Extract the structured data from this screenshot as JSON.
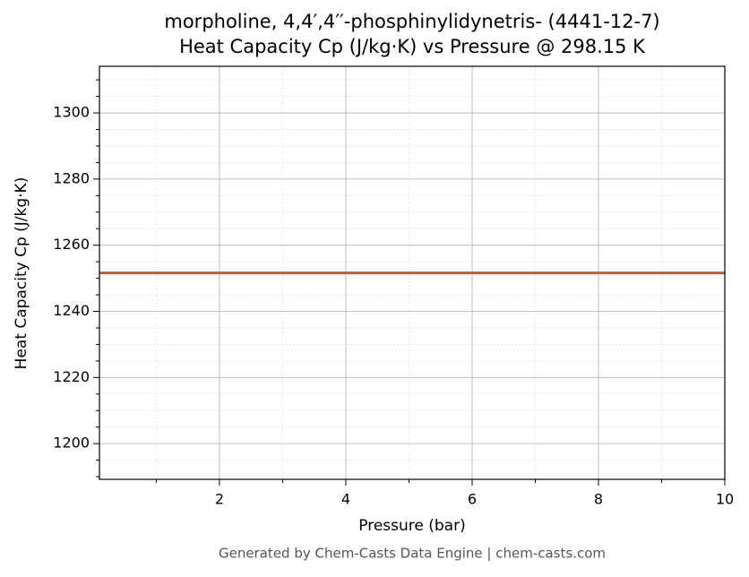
{
  "chart_data": {
    "type": "line",
    "title": "morpholine, 4,4′,4′′-phosphinylidynetris- (4441-12-7)",
    "subtitle": "Heat Capacity Cp (J/kg·K) vs Pressure @ 298.15 K",
    "x_label": "Pressure (bar)",
    "y_label": "Heat Capacity Cp (J/kg·K)",
    "footer": "Generated by Chem-Casts Data Engine | chem-casts.com",
    "x": [
      0.1,
      10
    ],
    "series": [
      {
        "name": "Cp",
        "color": "#cc5a2a",
        "values": [
          1251.6,
          1251.6
        ]
      }
    ],
    "xlim": [
      0.1,
      10
    ],
    "ylim": [
      1189.2,
      1314.1
    ],
    "xticks": [
      2,
      4,
      6,
      8,
      10
    ],
    "yticks": [
      1200,
      1220,
      1240,
      1260,
      1280,
      1300
    ],
    "xticks_minor": [
      1,
      3,
      5,
      7,
      9
    ],
    "yticks_minor": [
      1190,
      1195,
      1205,
      1210,
      1215,
      1225,
      1230,
      1235,
      1245,
      1250,
      1255,
      1265,
      1270,
      1275,
      1285,
      1290,
      1295,
      1305,
      1310
    ],
    "grid": true
  }
}
